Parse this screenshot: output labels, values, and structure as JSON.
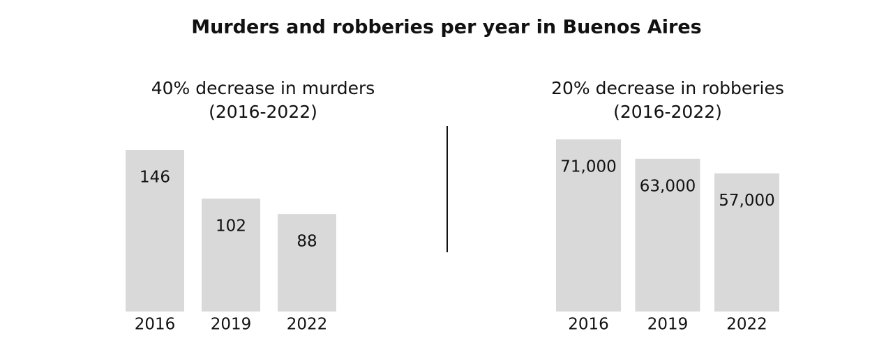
{
  "title": "Murders and robberies per year in Buenos Aires",
  "chart_data": [
    {
      "type": "bar",
      "title": "40% decrease in murders",
      "subtitle": "(2016-2022)",
      "categories": [
        "2016",
        "2019",
        "2022"
      ],
      "values": [
        146,
        102,
        88
      ],
      "color": "#d9d9d9"
    },
    {
      "type": "bar",
      "title": "20% decrease in robberies",
      "subtitle": "(2016-2022)",
      "categories": [
        "2016",
        "2019",
        "2022"
      ],
      "values": [
        71000,
        63000,
        57000
      ],
      "value_labels": [
        "71,000",
        "63,000",
        "57,000"
      ],
      "color": "#d9d9d9"
    }
  ]
}
